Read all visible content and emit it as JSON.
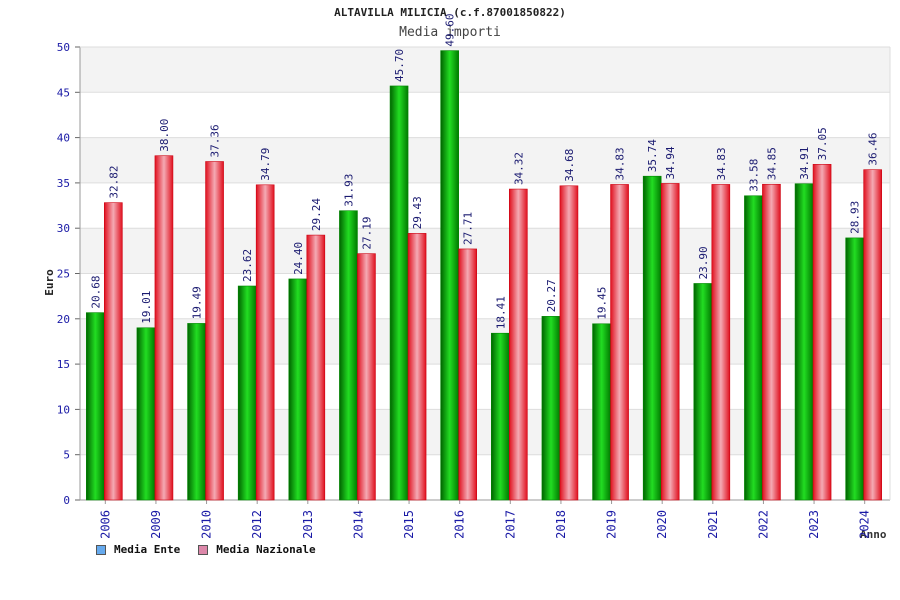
{
  "chart_data": {
    "type": "bar",
    "title": "ALTAVILLA MILICIA (c.f.87001850822)",
    "subtitle": "Media importi",
    "xlabel": "Anno",
    "ylabel": "Euro",
    "ylim": [
      0,
      50
    ],
    "y_ticks": [
      0,
      5,
      10,
      15,
      20,
      25,
      30,
      35,
      40,
      45,
      50
    ],
    "grid": true,
    "legend_position": "bottom-left",
    "categories": [
      "2006",
      "2009",
      "2010",
      "2012",
      "2013",
      "2014",
      "2015",
      "2016",
      "2017",
      "2018",
      "2019",
      "2020",
      "2021",
      "2022",
      "2023",
      "2024"
    ],
    "series": [
      {
        "name": "Media Ente",
        "color": "#00b000",
        "legend_color": "#66aaee",
        "values": [
          20.68,
          19.01,
          19.49,
          23.62,
          24.4,
          31.93,
          45.7,
          49.6,
          18.41,
          20.27,
          19.45,
          35.74,
          23.9,
          33.58,
          34.91,
          28.93
        ],
        "labels": [
          "20.68",
          "19.01",
          "19.49",
          "23.62",
          "24.40",
          "31.93",
          "45.70",
          "49.60",
          "18.41",
          "20.27",
          "19.45",
          "35.74",
          "23.90",
          "33.58",
          "34.91",
          "28.93"
        ]
      },
      {
        "name": "Media Nazionale",
        "color": "#e81e2c",
        "legend_color": "#dd88aa",
        "values": [
          32.82,
          38.0,
          37.36,
          34.79,
          29.24,
          27.19,
          29.43,
          27.71,
          34.32,
          34.68,
          34.83,
          34.94,
          34.83,
          34.85,
          37.05,
          36.46
        ],
        "labels": [
          "32.82",
          "38.00",
          "37.36",
          "34.79",
          "29.24",
          "27.19",
          "29.43",
          "27.71",
          "34.32",
          "34.68",
          "34.83",
          "34.94",
          "34.83",
          "34.85",
          "37.05",
          "36.46"
        ]
      }
    ]
  }
}
